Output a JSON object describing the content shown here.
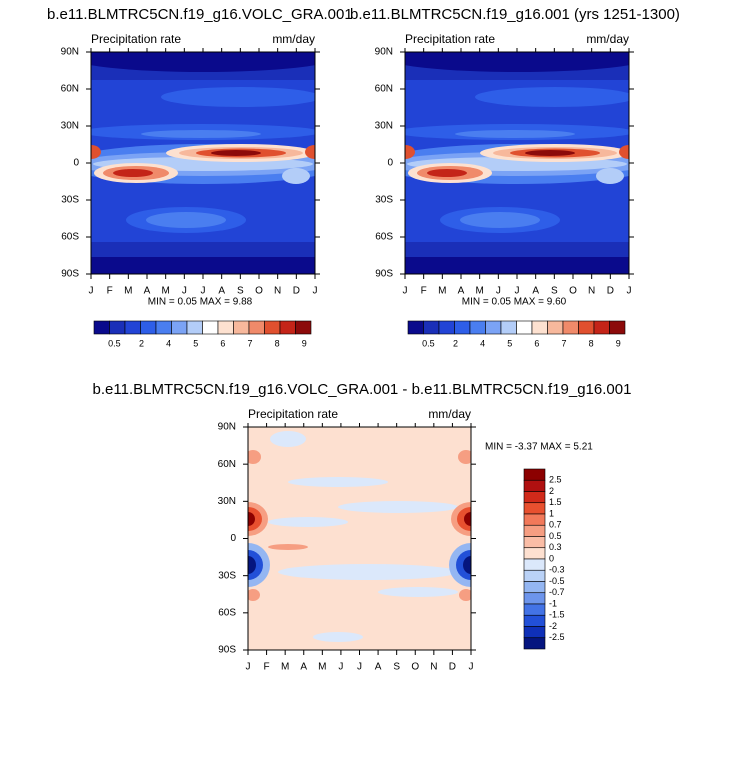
{
  "chart_data": [
    {
      "type": "contour",
      "title": "b.e11.BLMTRC5CN.f19_g16.VOLC_GRA.001",
      "left_label": "Precipitation rate",
      "right_label": "mm/day",
      "categories": [
        "J",
        "F",
        "M",
        "A",
        "M",
        "J",
        "J",
        "A",
        "S",
        "O",
        "N",
        "D",
        "J"
      ],
      "ylim": [
        -90,
        90
      ],
      "yticks": [
        {
          "value": -90,
          "label": "90S"
        },
        {
          "value": -60,
          "label": "60S"
        },
        {
          "value": -30,
          "label": "30S"
        },
        0,
        {
          "value": 30,
          "label": "30N"
        },
        {
          "value": 60,
          "label": "60N"
        },
        {
          "value": 90,
          "label": "90N"
        }
      ],
      "stats": "MIN =  0.05 MAX =  9.88",
      "colorbar": {
        "orientation": "horizontal",
        "colors": [
          "#0a0a8c",
          "#1a2fb8",
          "#2244d6",
          "#2e5ee8",
          "#4a7ef0",
          "#7ba3f5",
          "#b3cdf8",
          "#ffffff",
          "#fde1d0",
          "#f7b89c",
          "#f08a6a",
          "#e0502f",
          "#c42418",
          "#8c0a0a"
        ],
        "labels": [
          0.5,
          2,
          4,
          5,
          6,
          7,
          8,
          9
        ]
      }
    },
    {
      "type": "contour",
      "title": "b.e11.BLMTRC5CN.f19_g16.001 (yrs 1251-1300)",
      "left_label": "Precipitation rate",
      "right_label": "mm/day",
      "categories": [
        "J",
        "F",
        "M",
        "A",
        "M",
        "J",
        "J",
        "A",
        "S",
        "O",
        "N",
        "D",
        "J"
      ],
      "ylim": [
        -90,
        90
      ],
      "yticks": [
        {
          "value": -90,
          "label": "90S"
        },
        {
          "value": -60,
          "label": "60S"
        },
        {
          "value": -30,
          "label": "30S"
        },
        0,
        {
          "value": 30,
          "label": "30N"
        },
        {
          "value": 60,
          "label": "60N"
        },
        {
          "value": 90,
          "label": "90N"
        }
      ],
      "stats": "MIN =  0.05 MAX =  9.60",
      "colorbar": {
        "orientation": "horizontal",
        "colors": [
          "#0a0a8c",
          "#1a2fb8",
          "#2244d6",
          "#2e5ee8",
          "#4a7ef0",
          "#7ba3f5",
          "#b3cdf8",
          "#ffffff",
          "#fde1d0",
          "#f7b89c",
          "#f08a6a",
          "#e0502f",
          "#c42418",
          "#8c0a0a"
        ],
        "labels": [
          0.5,
          2,
          4,
          5,
          6,
          7,
          8,
          9
        ]
      }
    },
    {
      "type": "contour",
      "title": "b.e11.BLMTRC5CN.f19_g16.VOLC_GRA.001 - b.e11.BLMTRC5CN.f19_g16.001",
      "left_label": "Precipitation rate",
      "right_label": "mm/day",
      "categories": [
        "J",
        "F",
        "M",
        "A",
        "M",
        "J",
        "J",
        "A",
        "S",
        "O",
        "N",
        "D",
        "J"
      ],
      "ylim": [
        -90,
        90
      ],
      "yticks": [
        {
          "value": -90,
          "label": "90S"
        },
        {
          "value": -60,
          "label": "60S"
        },
        {
          "value": -30,
          "label": "30S"
        },
        0,
        {
          "value": 30,
          "label": "30N"
        },
        {
          "value": 60,
          "label": "60N"
        },
        {
          "value": 90,
          "label": "90N"
        }
      ],
      "stats": "MIN = -3.37 MAX =  5.21",
      "colorbar": {
        "orientation": "vertical",
        "colors": [
          "#8c0000",
          "#b01010",
          "#d12a1a",
          "#e8502f",
          "#f2795a",
          "#f69e82",
          "#fabda6",
          "#fde0d0",
          "#dbe8fb",
          "#bad2f7",
          "#94b6f2",
          "#6d95ec",
          "#4373e6",
          "#2250d8",
          "#0f30b8",
          "#05157f"
        ],
        "labels": [
          2.5,
          2,
          1.5,
          1,
          0.7,
          0.5,
          0.3,
          0,
          -0.3,
          -0.5,
          -0.7,
          -1,
          -1.5,
          -2,
          -2.5
        ]
      }
    }
  ]
}
